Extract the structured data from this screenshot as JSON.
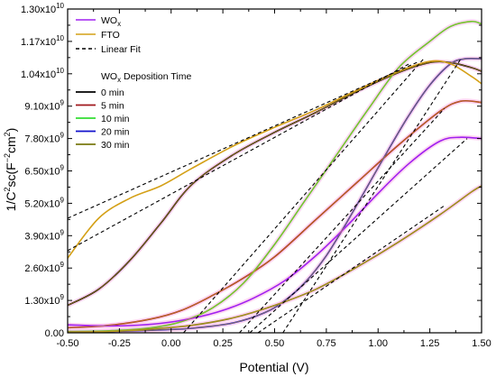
{
  "chart_data": {
    "type": "line",
    "xlabel": "Potential (V)",
    "ylabel": "1/C²sc(F⁻²cm²)",
    "ylabel_parts": {
      "base": "1/C",
      "sup1": "2",
      "mid": "sc(F",
      "sup2": "−2",
      "mid2": "cm",
      "sup3": "2",
      "end": ")"
    },
    "xlim": [
      -0.5,
      1.5
    ],
    "ylim": [
      0,
      13000000000.0
    ],
    "xticks": [
      -0.5,
      -0.25,
      0.0,
      0.25,
      0.5,
      0.75,
      1.0,
      1.25,
      1.5
    ],
    "xtick_labels": [
      "-0.50",
      "-0.25",
      "0.00",
      "0.25",
      "0.50",
      "0.75",
      "1.00",
      "1.25",
      "1.50"
    ],
    "yticks": [
      0,
      1300000000.0,
      2600000000.0,
      3900000000.0,
      5200000000.0,
      6500000000.0,
      7800000000.0,
      9100000000.0,
      10400000000.0,
      11700000000.0,
      13000000000.0
    ],
    "ytick_labels": [
      {
        "mant": "0.00",
        "exp": ""
      },
      {
        "mant": "1.30x10",
        "exp": "9"
      },
      {
        "mant": "2.60x10",
        "exp": "9"
      },
      {
        "mant": "3.90x10",
        "exp": "9"
      },
      {
        "mant": "5.20x10",
        "exp": "9"
      },
      {
        "mant": "6.50x10",
        "exp": "9"
      },
      {
        "mant": "7.80x10",
        "exp": "9"
      },
      {
        "mant": "9.10x10",
        "exp": "9"
      },
      {
        "mant": "1.04x10",
        "exp": "10"
      },
      {
        "mant": "1.17x10",
        "exp": "10"
      },
      {
        "mant": "1.30x10",
        "exp": "10"
      }
    ],
    "legend": {
      "placement": "top-left",
      "top_entries": [
        {
          "label": "WO",
          "sub": "x",
          "color": "#a020f0",
          "style": "solid"
        },
        {
          "label": "FTO",
          "sub": "",
          "color": "#d4a017",
          "style": "solid"
        },
        {
          "label": "Linear Fit",
          "sub": "",
          "color": "#000000",
          "style": "dashed"
        }
      ],
      "group_title": {
        "label": "WO",
        "sub": "x",
        "rest": " Deposition Time"
      },
      "group_entries": [
        {
          "label": "0 min",
          "color": "#000000"
        },
        {
          "label": "5 min",
          "color": "#a0181c"
        },
        {
          "label": "10 min",
          "color": "#33dd33"
        },
        {
          "label": "20 min",
          "color": "#1111cc"
        },
        {
          "label": "30 min",
          "color": "#7a7a10"
        }
      ]
    },
    "series": [
      {
        "name": "0 min",
        "color": "#000000",
        "fto": true,
        "x": [
          -0.5,
          -0.35,
          -0.2,
          -0.05,
          0.1,
          0.3,
          0.5,
          0.7,
          0.9,
          1.1,
          1.25,
          1.35,
          1.45,
          1.5
        ],
        "y": [
          1100000000.0,
          1750000000.0,
          2900000000.0,
          4400000000.0,
          5950000000.0,
          7150000000.0,
          8050000000.0,
          8850000000.0,
          9700000000.0,
          10450000000.0,
          10850000000.0,
          10850000000.0,
          10650000000.0,
          10500000000.0
        ]
      },
      {
        "name": "5 min",
        "color": "#a0181c",
        "fto": true,
        "x": [
          -0.5,
          -0.3,
          -0.1,
          0.05,
          0.2,
          0.35,
          0.5,
          0.7,
          0.9,
          1.1,
          1.3,
          1.4,
          1.5
        ],
        "y": [
          200000000.0,
          300000000.0,
          550000000.0,
          900000000.0,
          1500000000.0,
          2200000000.0,
          3050000000.0,
          4550000000.0,
          6050000000.0,
          7550000000.0,
          8900000000.0,
          9300000000.0,
          9250000000.0
        ]
      },
      {
        "name": "10 min",
        "color": "#33dd33",
        "fto": true,
        "x": [
          -0.5,
          -0.3,
          -0.1,
          0.05,
          0.2,
          0.35,
          0.5,
          0.65,
          0.8,
          0.95,
          1.1,
          1.25,
          1.35,
          1.45,
          1.5
        ],
        "y": [
          50000000.0,
          80000000.0,
          200000000.0,
          450000000.0,
          1000000000.0,
          2000000000.0,
          3550000000.0,
          5350000000.0,
          7150000000.0,
          8950000000.0,
          10650000000.0,
          11700000000.0,
          12300000000.0,
          12500000000.0,
          12400000000.0
        ]
      },
      {
        "name": "20 min",
        "color": "#1111cc",
        "fto": true,
        "x": [
          -0.5,
          -0.3,
          -0.1,
          0.1,
          0.3,
          0.45,
          0.55,
          0.65,
          0.75,
          0.85,
          0.95,
          1.05,
          1.15,
          1.25,
          1.35,
          1.42,
          1.5
        ],
        "y": [
          30000000.0,
          50000000.0,
          100000000.0,
          180000000.0,
          400000000.0,
          800000000.0,
          1300000000.0,
          2050000000.0,
          3100000000.0,
          4450000000.0,
          5900000000.0,
          7350000000.0,
          8750000000.0,
          9950000000.0,
          10800000000.0,
          11000000000.0,
          11000000000.0
        ]
      },
      {
        "name": "30 min",
        "color": "#7a7a10",
        "fto": true,
        "x": [
          -0.5,
          -0.3,
          -0.1,
          0.1,
          0.3,
          0.5,
          0.7,
          0.9,
          1.1,
          1.3,
          1.45,
          1.5
        ],
        "y": [
          30000000.0,
          50000000.0,
          150000000.0,
          300000000.0,
          600000000.0,
          1100000000.0,
          1750000000.0,
          2650000000.0,
          3650000000.0,
          4750000000.0,
          5650000000.0,
          5900000000.0
        ]
      },
      {
        "name": "WOx",
        "color": "#a020f0",
        "fto": false,
        "x": [
          -0.5,
          -0.35,
          -0.2,
          -0.05,
          0.1,
          0.25,
          0.4,
          0.55,
          0.7,
          0.85,
          1.0,
          1.15,
          1.3,
          1.4,
          1.5
        ],
        "y": [
          320000000.0,
          280000000.0,
          290000000.0,
          380000000.0,
          580000000.0,
          900000000.0,
          1400000000.0,
          2100000000.0,
          3100000000.0,
          4300000000.0,
          5600000000.0,
          6800000000.0,
          7700000000.0,
          7850000000.0,
          7800000000.0
        ]
      },
      {
        "name": "FTO",
        "color": "#d4a017",
        "fto": false,
        "x": [
          -0.5,
          -0.35,
          -0.2,
          -0.05,
          0.1,
          0.3,
          0.5,
          0.7,
          0.9,
          1.1,
          1.25,
          1.35,
          1.45,
          1.5
        ],
        "y": [
          3000000000.0,
          4600000000.0,
          5400000000.0,
          5900000000.0,
          6600000000.0,
          7500000000.0,
          8250000000.0,
          8950000000.0,
          9750000000.0,
          10500000000.0,
          10900000000.0,
          10800000000.0,
          10300000000.0,
          10000000000.0
        ]
      }
    ],
    "fits": [
      {
        "x": [
          -0.5,
          1.2
        ],
        "y": [
          4600000000.0,
          10900000000.0
        ]
      },
      {
        "x": [
          -0.5,
          1.15
        ],
        "y": [
          3300000000.0,
          10800000000.0
        ]
      },
      {
        "x": [
          0.06,
          1.22
        ],
        "y": [
          0.0,
          11000000000.0
        ]
      },
      {
        "x": [
          0.33,
          1.32
        ],
        "y": [
          0.0,
          9000000000.0
        ]
      },
      {
        "x": [
          0.54,
          1.4
        ],
        "y": [
          0.0,
          11000000000.0
        ]
      },
      {
        "x": [
          0.38,
          1.43
        ],
        "y": [
          0.0,
          7800000000.0
        ]
      },
      {
        "x": [
          0.42,
          1.32
        ],
        "y": [
          0.0,
          5100000000.0
        ]
      }
    ]
  }
}
